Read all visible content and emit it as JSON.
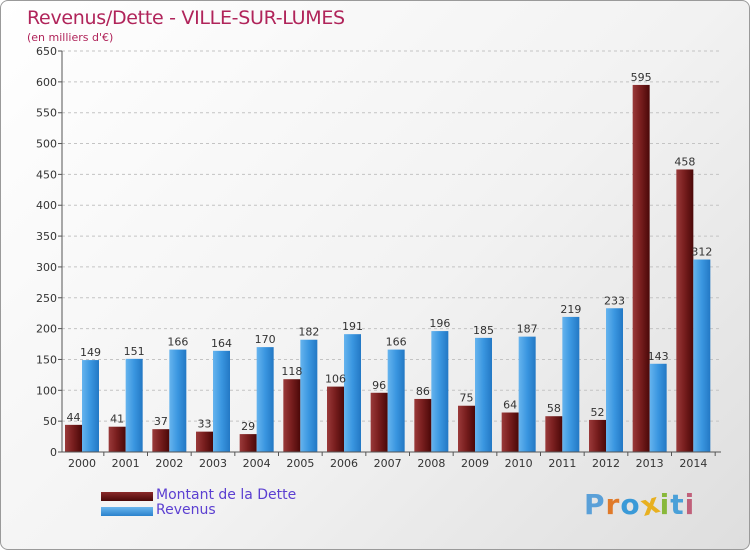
{
  "header": {
    "title": "Revenus/Dette - VILLE-SUR-LUMES",
    "subtitle": "(en milliers d'€)"
  },
  "chart_data": {
    "type": "bar",
    "title": "Revenus/Dette - VILLE-SUR-LUMES",
    "ylabel": "(en milliers d'€)",
    "xlabel": "",
    "ylim": [
      0,
      650
    ],
    "yticks": [
      0,
      50,
      100,
      150,
      200,
      250,
      300,
      350,
      400,
      450,
      500,
      550,
      600,
      650
    ],
    "grid": true,
    "categories": [
      "2000",
      "2001",
      "2002",
      "2003",
      "2004",
      "2005",
      "2006",
      "2007",
      "2008",
      "2009",
      "2010",
      "2011",
      "2012",
      "2013",
      "2014"
    ],
    "series": [
      {
        "name": "Montant de la Dette",
        "color": "#7a1f1f",
        "values": [
          44,
          41,
          37,
          33,
          29,
          118,
          106,
          96,
          86,
          75,
          64,
          58,
          52,
          595,
          458
        ]
      },
      {
        "name": "Revenus",
        "color": "#3a96e0",
        "values": [
          149,
          151,
          166,
          164,
          170,
          182,
          191,
          166,
          196,
          185,
          187,
          219,
          233,
          143,
          312
        ]
      }
    ],
    "legend_position": "bottom-left"
  },
  "legend": [
    {
      "label": "Montant de la Dette",
      "color": "#6b0f0f"
    },
    {
      "label": "Revenus",
      "color": "#3a96e0"
    }
  ],
  "logo": {
    "text": "Proxiti",
    "letters": [
      "P",
      "r",
      "o",
      "x",
      "i",
      "t",
      "i"
    ],
    "colors": [
      "#5aa0d8",
      "#e07a2a",
      "#3a9ad8",
      "#e8b020",
      "#88b83a",
      "#4aa0d8",
      "#c0607a"
    ]
  }
}
